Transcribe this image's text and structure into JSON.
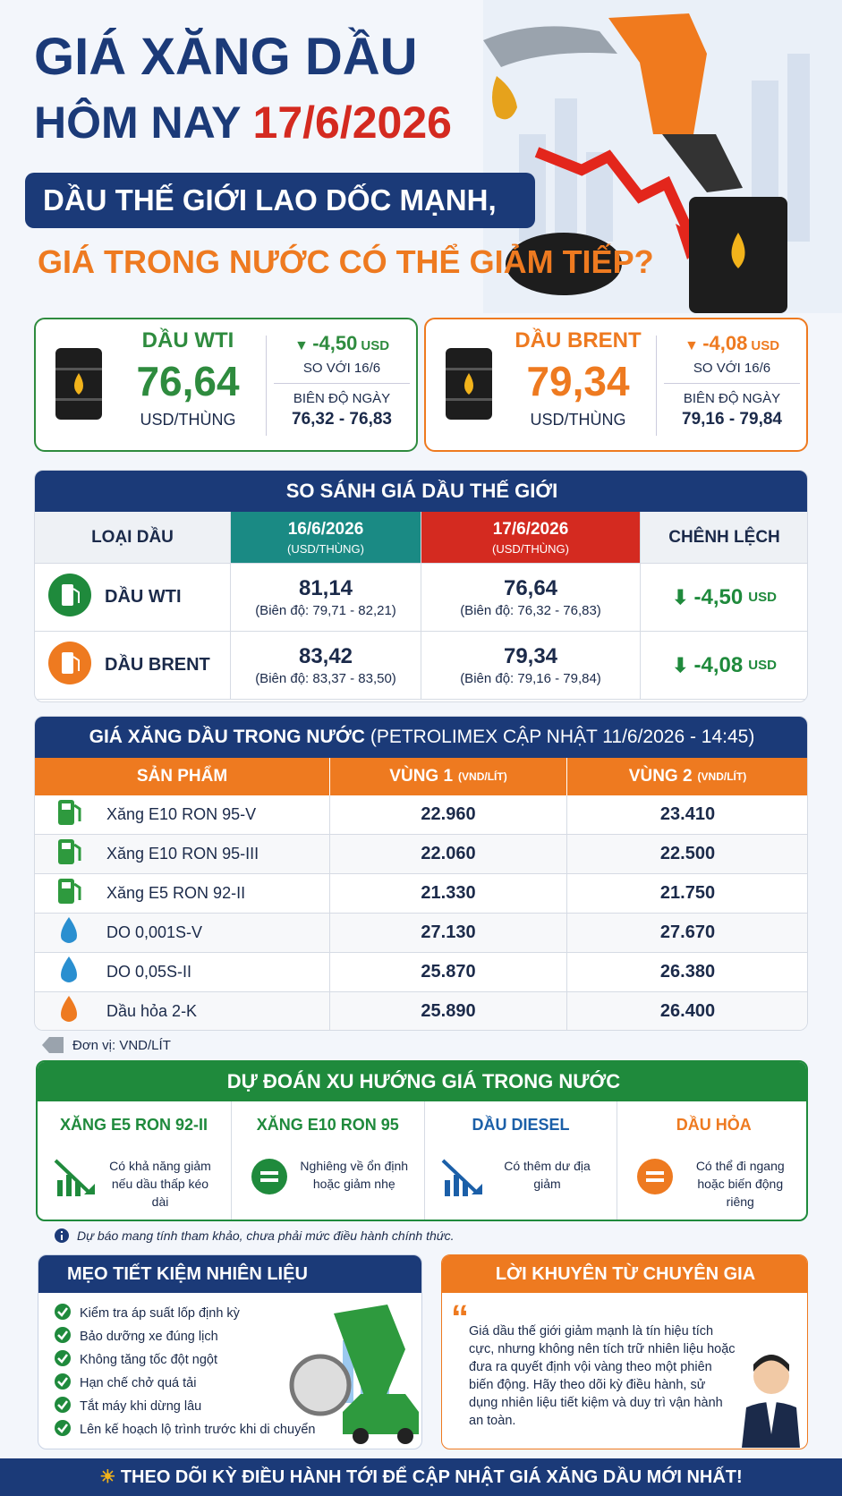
{
  "header": {
    "title": "GIÁ XĂNG DẦU",
    "today": "HÔM NAY",
    "date": "17/6/2026",
    "headline": "DẦU THẾ GIỚI LAO DỐC MẠNH,",
    "subheadline": "GIÁ TRONG NƯỚC CÓ THỂ GIẢM TIẾP?"
  },
  "cards": [
    {
      "name": "DẦU WTI",
      "price": "76,64",
      "unit": "USD/THÙNG",
      "change": "-4,50",
      "change_unit": "USD",
      "compare": "SO VỚI 16/6",
      "range_label": "BIÊN ĐỘ NGÀY",
      "range": "76,32 - 76,83"
    },
    {
      "name": "DẦU BRENT",
      "price": "79,34",
      "unit": "USD/THÙNG",
      "change": "-4,08",
      "change_unit": "USD",
      "compare": "SO VỚI 16/6",
      "range_label": "BIÊN ĐỘ NGÀY",
      "range": "79,16 - 79,84"
    }
  ],
  "world_table": {
    "title": "SO SÁNH GIÁ DẦU THẾ GIỚI",
    "columns": [
      {
        "label": "LOẠI DẦU"
      },
      {
        "label": "16/6/2026",
        "unit": "(USD/THÙNG)"
      },
      {
        "label": "17/6/2026",
        "unit": "(USD/THÙNG)"
      },
      {
        "label": "CHÊNH LỆCH"
      }
    ],
    "rows": [
      {
        "name": "DẦU WTI",
        "prev": "81,14",
        "prev_range": "(Biên độ: 79,71 - 82,21)",
        "curr": "76,64",
        "curr_range": "(Biên độ: 76,32 - 76,83)",
        "diff": "-4,50",
        "diff_unit": "USD"
      },
      {
        "name": "DẦU BRENT",
        "prev": "83,42",
        "prev_range": "(Biên độ: 83,37 - 83,50)",
        "curr": "79,34",
        "curr_range": "(Biên độ: 79,16 - 79,84)",
        "diff": "-4,08",
        "diff_unit": "USD"
      }
    ]
  },
  "domestic_table": {
    "title": "GIÁ XĂNG DẦU TRONG NƯỚC",
    "update": "(PETROLIMEX CẬP NHẬT 11/6/2026 - 14:45)",
    "columns": [
      {
        "label": "SẢN PHẨM"
      },
      {
        "label": "VÙNG 1",
        "unit": "(VND/LÍT)"
      },
      {
        "label": "VÙNG 2",
        "unit": "(VND/LÍT)"
      }
    ],
    "rows": [
      [
        "Xăng E10 RON 95-V",
        "22.960",
        "23.410"
      ],
      [
        "Xăng E10 RON 95-III",
        "22.060",
        "22.500"
      ],
      [
        "Xăng E5 RON 92-II",
        "21.330",
        "21.750"
      ],
      [
        "DO 0,001S-V",
        "27.130",
        "27.670"
      ],
      [
        "DO 0,05S-II",
        "25.870",
        "26.380"
      ],
      [
        "Dầu hỏa 2-K",
        "25.890",
        "26.400"
      ]
    ],
    "unit_note": "Đơn vị: VND/LÍT"
  },
  "forecast": {
    "title": "DỰ ĐOÁN XU HƯỚNG GIÁ TRONG NƯỚC",
    "items": [
      {
        "product": "XĂNG E5 RON 92-II",
        "text": "Có khả năng giảm nếu dầu thấp kéo dài"
      },
      {
        "product": "XĂNG E10 RON 95",
        "text": "Nghiêng về ổn định hoặc giảm nhẹ"
      },
      {
        "product": "DẦU DIESEL",
        "text": "Có thêm dư địa giảm"
      },
      {
        "product": "DẦU HỎA",
        "text": "Có thể đi ngang hoặc biến động riêng"
      }
    ],
    "note": "Dự báo mang tính tham khảo, chưa phải mức điều hành chính thức."
  },
  "tips": {
    "title": "MẸO TIẾT KIỆM NHIÊN LIỆU",
    "items": [
      "Kiểm tra áp suất lốp định kỳ",
      "Bảo dưỡng xe đúng lịch",
      "Không tăng tốc đột ngột",
      "Hạn chế chở quá tải",
      "Tắt máy khi dừng lâu",
      "Lên kế hoạch lộ trình trước khi di chuyển"
    ]
  },
  "advice": {
    "title": "LỜI KHUYÊN TỪ CHUYÊN GIA",
    "text": "Giá dầu thế giới giảm mạnh là tín hiệu tích cực, nhưng không nên tích trữ nhiên liệu hoặc đưa ra quyết định vội vàng theo một phiên biến động. Hãy theo dõi kỳ điều hành, sử dụng nhiên liệu tiết kiệm và duy trì vận hành an toàn."
  },
  "footer": "THEO DÕI KỲ ĐIỀU HÀNH TỚI ĐỂ CẬP NHẬT GIÁ XĂNG DẦU MỚI NHẤT!"
}
